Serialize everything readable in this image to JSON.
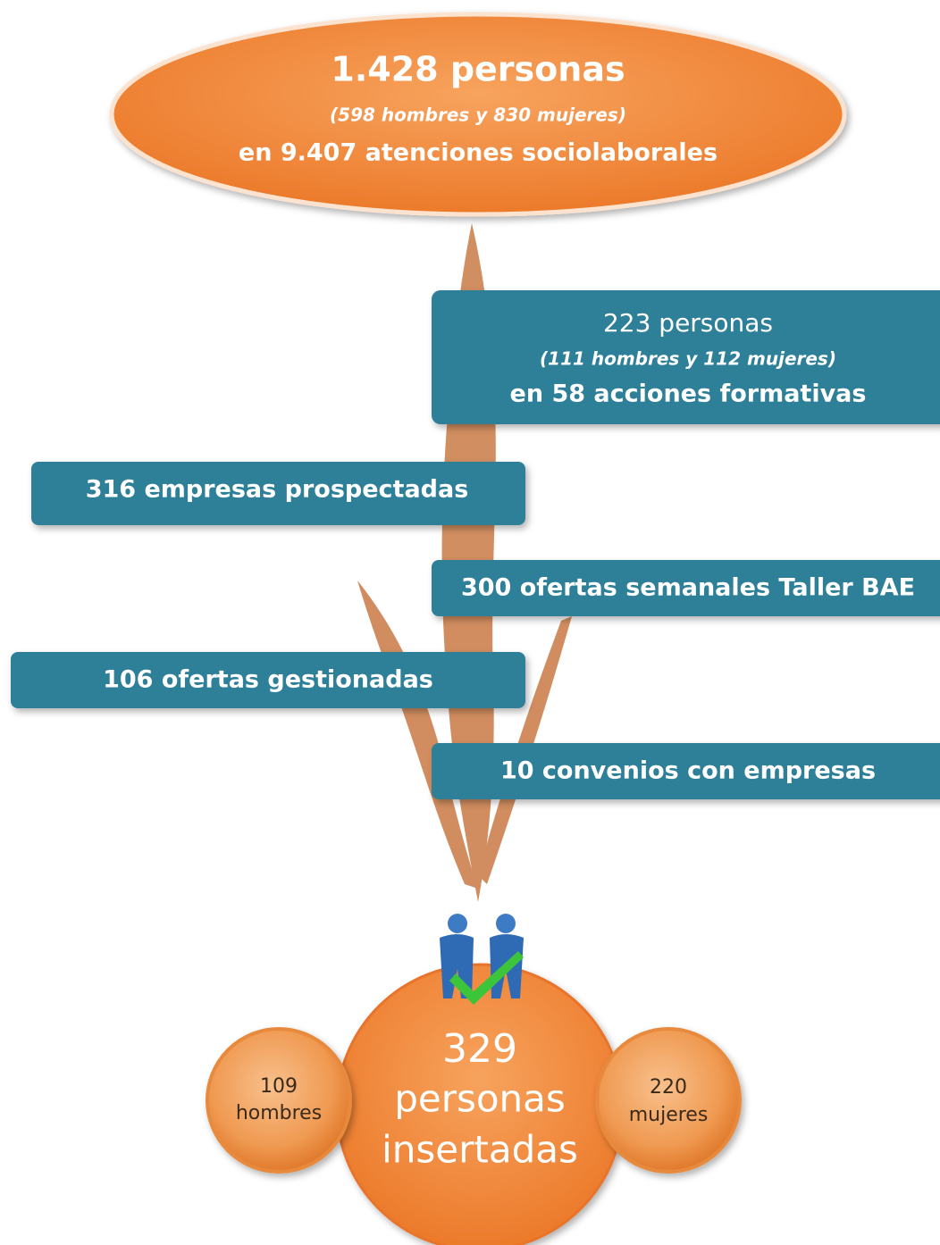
{
  "header": {
    "title": "1.428 personas",
    "subtitle": "(598 hombres y 830 mujeres)",
    "detail": "en 9.407 atenciones sociolaborales"
  },
  "boxes": [
    {
      "lines": [
        "223 personas",
        "(111 hombres y 112 mujeres)",
        "en 58 acciones formativas"
      ]
    },
    {
      "lines": [
        "316 empresas prospectadas"
      ]
    },
    {
      "lines": [
        "300 ofertas semanales Taller BAE"
      ]
    },
    {
      "lines": [
        "106 ofertas gestionadas"
      ]
    },
    {
      "lines": [
        "10 convenios con empresas"
      ]
    }
  ],
  "result": {
    "number": "329",
    "lines": [
      "personas",
      "insertadas"
    ]
  },
  "men": {
    "number": "109",
    "label": "hombres"
  },
  "women": {
    "number": "220",
    "label": "mujeres"
  }
}
